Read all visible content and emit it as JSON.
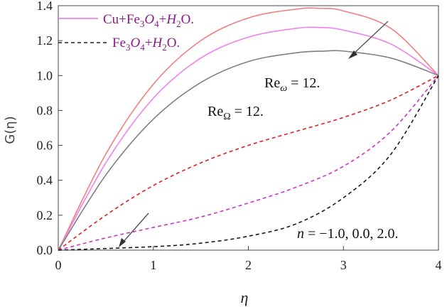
{
  "chart_data": {
    "type": "line",
    "xlabel": "η",
    "ylabel": "G(η)",
    "xlim": [
      0,
      4
    ],
    "ylim": [
      0,
      1.4
    ],
    "x_ticks": [
      "0",
      "1",
      "2",
      "3",
      "4"
    ],
    "y_ticks": [
      "0.0",
      "0.2",
      "0.4",
      "0.6",
      "0.8",
      "1.0",
      "1.2",
      "1.4"
    ],
    "legend": {
      "placement": "top-left",
      "entries": [
        {
          "label": "Cu+Fe₃O₄+H₂O.",
          "style": "solid",
          "color": "#e879e8"
        },
        {
          "label": "Fe₃O₄+H₂O.",
          "style": "dashed",
          "color": "#222222"
        }
      ]
    },
    "annotations": {
      "re_omega": "Re",
      "re_omega_sub": "ω",
      "re_omega_value": " = 12.",
      "re_omega_big": "Re",
      "re_omega_big_sub": "Ω",
      "re_omega_big_value": " = 12.",
      "n_label": "n",
      "n_values": " = −1.0, 0.0, 2.0."
    },
    "series": [
      {
        "style": "solid",
        "color": "#f08080",
        "points": [
          [
            0,
            0
          ],
          [
            0.5,
            0.55
          ],
          [
            1,
            0.95
          ],
          [
            1.5,
            1.2
          ],
          [
            2,
            1.33
          ],
          [
            2.5,
            1.38
          ],
          [
            2.75,
            1.385
          ],
          [
            3,
            1.37
          ],
          [
            3.5,
            1.27
          ],
          [
            4,
            1.0
          ]
        ]
      },
      {
        "style": "solid",
        "color": "#ee82ee",
        "points": [
          [
            0,
            0
          ],
          [
            0.5,
            0.5
          ],
          [
            1,
            0.87
          ],
          [
            1.5,
            1.1
          ],
          [
            2,
            1.22
          ],
          [
            2.5,
            1.27
          ],
          [
            2.75,
            1.275
          ],
          [
            3,
            1.26
          ],
          [
            3.5,
            1.18
          ],
          [
            4,
            1.0
          ]
        ]
      },
      {
        "style": "solid",
        "color": "#808080",
        "points": [
          [
            0,
            0
          ],
          [
            0.5,
            0.43
          ],
          [
            1,
            0.75
          ],
          [
            1.5,
            0.96
          ],
          [
            2,
            1.08
          ],
          [
            2.5,
            1.13
          ],
          [
            2.8,
            1.14
          ],
          [
            3,
            1.14
          ],
          [
            3.5,
            1.1
          ],
          [
            4,
            1.0
          ]
        ]
      },
      {
        "style": "dashed",
        "color": "#e02020",
        "points": [
          [
            0,
            0
          ],
          [
            0.5,
            0.2
          ],
          [
            1,
            0.37
          ],
          [
            1.5,
            0.5
          ],
          [
            2,
            0.6
          ],
          [
            2.5,
            0.68
          ],
          [
            3,
            0.76
          ],
          [
            3.5,
            0.86
          ],
          [
            4,
            1.0
          ]
        ]
      },
      {
        "style": "dashed",
        "color": "#cc33cc",
        "points": [
          [
            0,
            0
          ],
          [
            0.5,
            0.07
          ],
          [
            1,
            0.13
          ],
          [
            1.5,
            0.19
          ],
          [
            2,
            0.27
          ],
          [
            2.5,
            0.36
          ],
          [
            3,
            0.48
          ],
          [
            3.5,
            0.68
          ],
          [
            4,
            1.0
          ]
        ]
      },
      {
        "style": "dashed",
        "color": "#1a1a1a",
        "points": [
          [
            0,
            0
          ],
          [
            1,
            0.02
          ],
          [
            1.5,
            0.04
          ],
          [
            2,
            0.08
          ],
          [
            2.5,
            0.15
          ],
          [
            3,
            0.3
          ],
          [
            3.5,
            0.55
          ],
          [
            4,
            1.0
          ]
        ]
      }
    ]
  }
}
